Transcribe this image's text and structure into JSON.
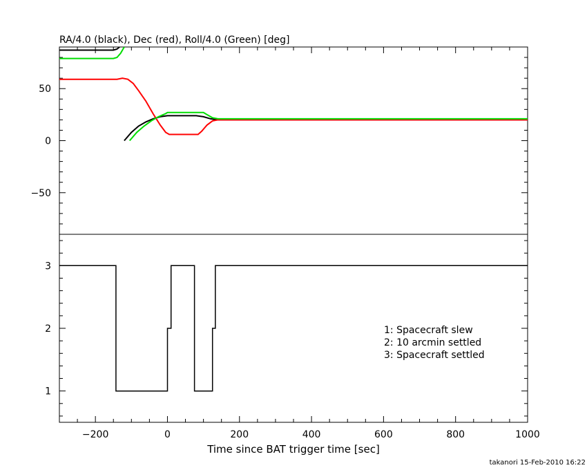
{
  "page": {
    "footer": "takanori 15-Feb-2010 16:22"
  },
  "chart_data": [
    {
      "type": "line",
      "title": "RA/4.0 (black), Dec (red), Roll/4.0 (Green) [deg]",
      "xlim": [
        -300,
        1000
      ],
      "ylim": [
        -90,
        90
      ],
      "yticks": [
        -50,
        0,
        50
      ],
      "grid": false,
      "series": [
        {
          "name": "RA/4.0 (black)",
          "color": "#000000",
          "segments": [
            [
              [
                -300,
                87
              ],
              [
                -150,
                87
              ],
              [
                -140,
                88
              ],
              [
                -133,
                90
              ]
            ],
            [
              [
                -120,
                0
              ],
              [
                -100,
                8
              ],
              [
                -80,
                14
              ],
              [
                -60,
                18
              ],
              [
                -40,
                21
              ],
              [
                -20,
                23
              ],
              [
                0,
                24
              ],
              [
                60,
                24
              ],
              [
                80,
                24
              ],
              [
                100,
                23
              ],
              [
                120,
                21
              ],
              [
                140,
                20
              ],
              [
                1000,
                20
              ]
            ]
          ]
        },
        {
          "name": "Dec (red)",
          "color": "#ff0000",
          "segments": [
            [
              [
                -300,
                59
              ],
              [
                -140,
                59
              ],
              [
                -125,
                60
              ],
              [
                -110,
                59
              ],
              [
                -95,
                55
              ],
              [
                -80,
                48
              ],
              [
                -60,
                38
              ],
              [
                -40,
                26
              ],
              [
                -20,
                15
              ],
              [
                -5,
                8
              ],
              [
                5,
                6
              ],
              [
                85,
                6
              ],
              [
                95,
                9
              ],
              [
                110,
                15
              ],
              [
                125,
                19
              ],
              [
                140,
                20
              ],
              [
                1000,
                20
              ]
            ]
          ]
        },
        {
          "name": "Roll/4.0 (Green)",
          "color": "#00dd00",
          "segments": [
            [
              [
                -300,
                79
              ],
              [
                -150,
                79
              ],
              [
                -140,
                80
              ],
              [
                -130,
                84
              ],
              [
                -120,
                90
              ]
            ],
            [
              [
                -105,
                0
              ],
              [
                -85,
                8
              ],
              [
                -65,
                14
              ],
              [
                -45,
                19
              ],
              [
                -25,
                23
              ],
              [
                -5,
                26
              ],
              [
                0,
                27
              ],
              [
                100,
                27
              ],
              [
                110,
                25
              ],
              [
                125,
                22
              ],
              [
                140,
                21
              ],
              [
                1000,
                21
              ]
            ]
          ]
        }
      ]
    },
    {
      "type": "line",
      "xlabel": "Time since BAT trigger time [sec]",
      "xlim": [
        -300,
        1000
      ],
      "ylim": [
        0.5,
        3.5
      ],
      "xticks": [
        -200,
        0,
        200,
        400,
        600,
        800,
        1000
      ],
      "yticks": [
        1,
        2,
        3
      ],
      "grid": false,
      "legend": "right",
      "annotations": [
        "1: Spacecraft slew",
        "2: 10 arcmin settled",
        "3: Spacecraft settled"
      ],
      "series": [
        {
          "color": "#000000",
          "step": true,
          "x": [
            -300,
            -143,
            -143,
            0,
            0,
            10,
            10,
            75,
            75,
            125,
            125,
            133,
            133,
            1000
          ],
          "y": [
            3,
            3,
            1,
            1,
            2,
            2,
            3,
            3,
            1,
            1,
            2,
            2,
            3,
            3
          ]
        }
      ]
    }
  ]
}
